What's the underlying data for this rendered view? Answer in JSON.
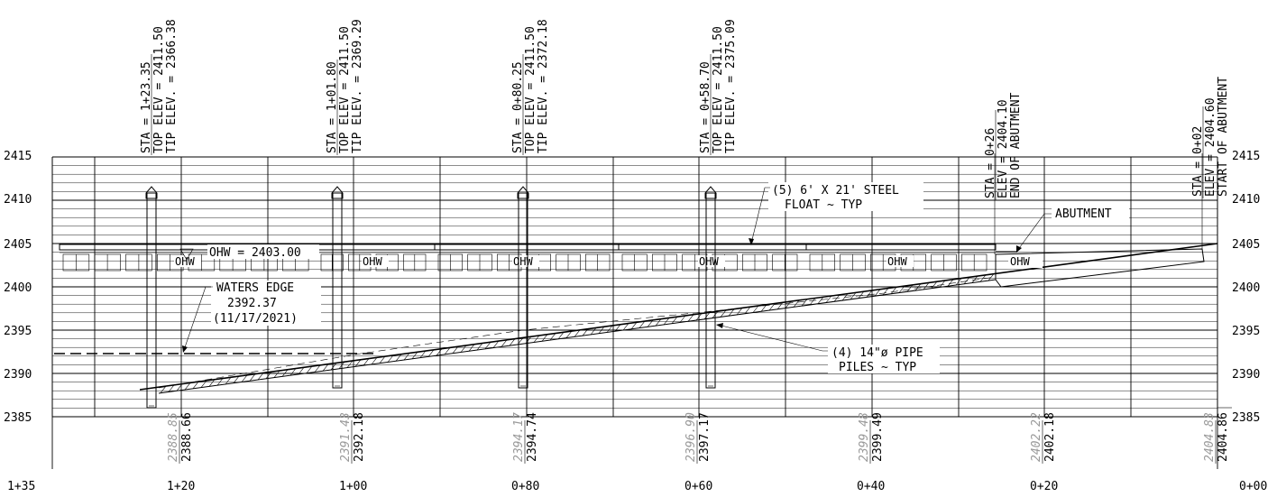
{
  "elevation_labels_left": [
    "2415",
    "2410",
    "2405",
    "2400",
    "2395",
    "2390",
    "2385"
  ],
  "elevation_labels_right": [
    "2415",
    "2410",
    "2405",
    "2400",
    "2395",
    "2390",
    "2385"
  ],
  "station_labels": [
    "1+35",
    "1+20",
    "1+00",
    "0+80",
    "0+60",
    "0+40",
    "0+20",
    "0+00"
  ],
  "profile": {
    "proposed_elevations": [
      "2388.66",
      "2392.18",
      "2394.74",
      "2397.17",
      "2399.49",
      "2402.18",
      "2404.86"
    ],
    "existing_elevations": [
      "2388.85",
      "2391.43",
      "2394.17",
      "2396.90",
      "2399.48",
      "2402.22",
      "2404.83"
    ]
  },
  "piles": [
    {
      "sta": "STA = 1+23.35",
      "top": "TOP ELEV = 2411.50",
      "tip": "TIP ELEV. = 2366.38"
    },
    {
      "sta": "STA = 1+01.80",
      "top": "TOP ELEV = 2411.50",
      "tip": "TIP ELEV. = 2369.29"
    },
    {
      "sta": "STA = 0+80.25",
      "top": "TOP ELEV = 2411.50",
      "tip": "TIP ELEV. = 2372.18"
    },
    {
      "sta": "STA = 0+58.70",
      "top": "TOP ELEV = 2411.50",
      "tip": "TIP ELEV. = 2375.09"
    }
  ],
  "abutment_end": {
    "sta": "STA = 0+26",
    "elev": "ELEV = 2404.10",
    "desc": "END OF ABUTMENT"
  },
  "abutment_start": {
    "sta": "STA = 0+02",
    "elev": "ELEV = 2404.60",
    "desc": "START OF ABUTMENT"
  },
  "callouts": {
    "float_line1": "(5) 6' X 21' STEEL",
    "float_line2": "FLOAT ~ TYP",
    "abutment": "ABUTMENT",
    "pipe_line1": "(4) 14\"ø PIPE",
    "pipe_line2": "PILES ~ TYP",
    "waters_line1": "WATERS EDGE",
    "waters_line2": "2392.37",
    "waters_line3": "(11/17/2021)",
    "ohw": "OHW = 2403.00",
    "ohw_marker": "OHW"
  }
}
